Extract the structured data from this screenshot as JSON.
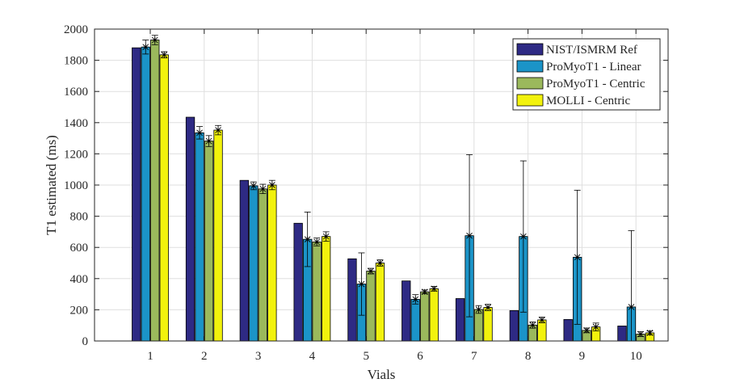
{
  "chart_data": {
    "type": "bar",
    "title": "",
    "xlabel": "Vials",
    "ylabel": "T1 estimated (ms)",
    "ylim": [
      0,
      2000
    ],
    "yticks": [
      0,
      200,
      400,
      600,
      800,
      1000,
      1200,
      1400,
      1600,
      1800,
      2000
    ],
    "grid": true,
    "legend_position": "top-right",
    "categories": [
      "1",
      "2",
      "3",
      "4",
      "5",
      "6",
      "7",
      "8",
      "9",
      "10"
    ],
    "series": [
      {
        "name": "NIST/ISMRM Ref",
        "color": "#2e2a84",
        "values": [
          1880,
          1435,
          1030,
          755,
          527,
          385,
          272,
          195,
          138,
          96
        ],
        "errors": null
      },
      {
        "name": "ProMyoT1 - Linear",
        "color": "#1b94c8",
        "values": [
          1885,
          1335,
          995,
          652,
          365,
          267,
          675,
          670,
          537,
          218
        ],
        "errors": [
          45,
          40,
          25,
          175,
          200,
          30,
          520,
          485,
          430,
          490
        ]
      },
      {
        "name": "ProMyoT1 - Centric",
        "color": "#9bb95c",
        "values": [
          1930,
          1282,
          975,
          635,
          448,
          315,
          202,
          102,
          68,
          44
        ],
        "errors": [
          30,
          35,
          30,
          25,
          18,
          12,
          25,
          20,
          15,
          15
        ]
      },
      {
        "name": "MOLLI - Centric",
        "color": "#f2f20d",
        "values": [
          1835,
          1352,
          1000,
          670,
          500,
          335,
          215,
          135,
          90,
          52
        ],
        "errors": [
          20,
          30,
          30,
          30,
          20,
          15,
          20,
          18,
          25,
          12
        ]
      }
    ]
  }
}
